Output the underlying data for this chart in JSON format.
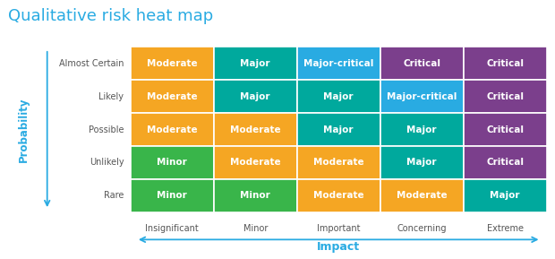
{
  "title": "Qualitative risk heat map",
  "title_color": "#29ABE2",
  "title_fontsize": 13,
  "prob_labels": [
    "Almost Certain",
    "Likely",
    "Possible",
    "Unlikely",
    "Rare"
  ],
  "impact_labels": [
    "Insignificant",
    "Minor",
    "Important",
    "Concerning",
    "Extreme"
  ],
  "ylabel": "Probability",
  "xlabel": "Impact",
  "axis_label_color": "#29ABE2",
  "tick_label_color": "#555555",
  "cell_text": [
    [
      "Moderate",
      "Major",
      "Major-critical",
      "Critical",
      "Critical"
    ],
    [
      "Moderate",
      "Major",
      "Major",
      "Major-critical",
      "Critical"
    ],
    [
      "Moderate",
      "Moderate",
      "Major",
      "Major",
      "Critical"
    ],
    [
      "Minor",
      "Moderate",
      "Moderate",
      "Major",
      "Critical"
    ],
    [
      "Minor",
      "Minor",
      "Moderate",
      "Moderate",
      "Major"
    ]
  ],
  "cell_colors": [
    [
      "#F5A623",
      "#00A99D",
      "#29ABE2",
      "#7B3F8C",
      "#7B3F8C"
    ],
    [
      "#F5A623",
      "#00A99D",
      "#00A99D",
      "#29ABE2",
      "#7B3F8C"
    ],
    [
      "#F5A623",
      "#F5A623",
      "#00A99D",
      "#00A99D",
      "#7B3F8C"
    ],
    [
      "#39B54A",
      "#F5A623",
      "#F5A623",
      "#00A99D",
      "#7B3F8C"
    ],
    [
      "#39B54A",
      "#39B54A",
      "#F5A623",
      "#F5A623",
      "#00A99D"
    ]
  ],
  "cell_text_color": "#FFFFFF",
  "cell_text_fontsize": 7.5,
  "grid_color": "#FFFFFF",
  "background_color": "#FFFFFF"
}
